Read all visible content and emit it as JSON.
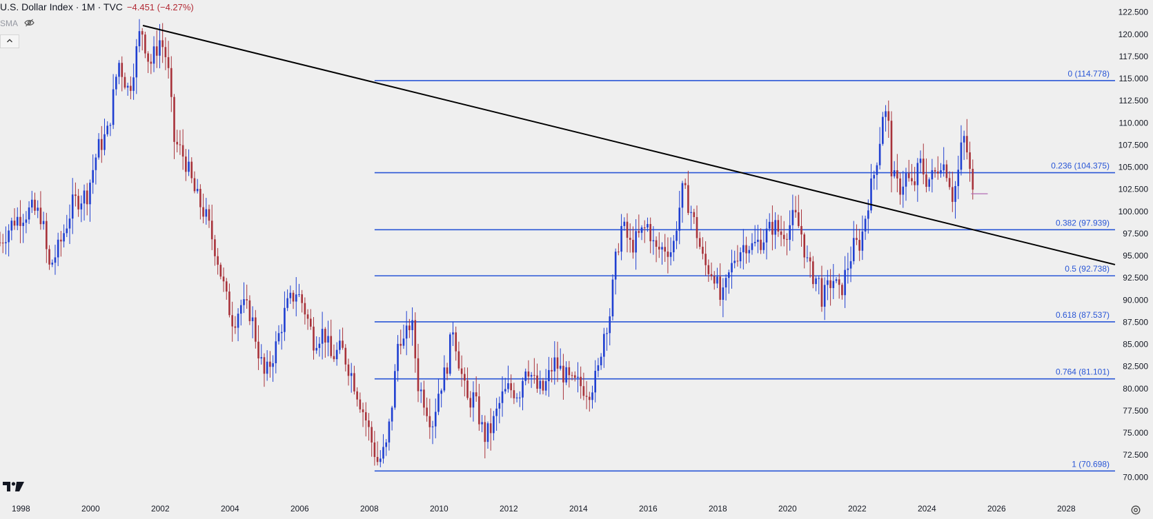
{
  "header": {
    "title": "U.S. Dollar Index · 1M · TVC",
    "change": "−4.451 (−4.27%)",
    "indicator": "SMA"
  },
  "colors": {
    "background": "#efefef",
    "up": "#1f3fd1",
    "down": "#a8323a",
    "fib": "#2855d6",
    "trendline": "#000000",
    "fib_label": "#2855d6",
    "change_text": "#b22833"
  },
  "icons": [
    "eye-off-icon",
    "chevron-up-icon",
    "tradingview-logo-icon",
    "settings-gear-icon"
  ],
  "chart_data": {
    "type": "candlestick",
    "title": "U.S. Dollar Index · 1M · TVC",
    "x_ticks": [
      "1998",
      "2000",
      "2002",
      "2004",
      "2006",
      "2008",
      "2010",
      "2012",
      "2014",
      "2016",
      "2018",
      "2020",
      "2022",
      "2024",
      "2026",
      "2028"
    ],
    "x_range": [
      1997.4,
      2029.4
    ],
    "y_ticks": [
      "70.000",
      "72.500",
      "75.000",
      "77.500",
      "80.000",
      "82.500",
      "85.000",
      "87.500",
      "90.000",
      "92.500",
      "95.000",
      "97.500",
      "100.000",
      "102.500",
      "105.000",
      "107.500",
      "110.000",
      "112.500",
      "115.000",
      "117.500",
      "120.000",
      "122.500"
    ],
    "y_range": [
      69.4,
      123.1
    ],
    "grid": false,
    "fibonacci_retracement": {
      "x_start": 2008.15,
      "levels": [
        {
          "ratio": "0",
          "value": 114.778,
          "label": "0 (114.778)"
        },
        {
          "ratio": "0.236",
          "value": 104.375,
          "label": "0.236 (104.375)"
        },
        {
          "ratio": "0.382",
          "value": 97.939,
          "label": "0.382 (97.939)"
        },
        {
          "ratio": "0.5",
          "value": 92.738,
          "label": "0.5 (92.738)"
        },
        {
          "ratio": "0.618",
          "value": 87.537,
          "label": "0.618 (87.537)"
        },
        {
          "ratio": "0.764",
          "value": 81.101,
          "label": "0.764 (81.101)"
        },
        {
          "ratio": "1",
          "value": 70.698,
          "label": "1 (70.698)"
        }
      ]
    },
    "trendline": {
      "from": [
        2001.5,
        121.0
      ],
      "through": [
        2025.3,
        98.0
      ],
      "to": [
        2029.4,
        94.0
      ]
    },
    "current_price_marker": {
      "x": 2025.35,
      "value": 102.0
    },
    "price_path": [
      [
        1997.4,
        96.5
      ],
      [
        1997.8,
        99.0
      ],
      [
        1998.3,
        100.2
      ],
      [
        1998.6,
        99.5
      ],
      [
        1998.8,
        93.5
      ],
      [
        1999.1,
        96.0
      ],
      [
        1999.5,
        101.0
      ],
      [
        1999.9,
        102.0
      ],
      [
        2000.2,
        107.0
      ],
      [
        2000.5,
        109.0
      ],
      [
        2000.8,
        117.0
      ],
      [
        2001.1,
        113.5
      ],
      [
        2001.45,
        120.9
      ],
      [
        2001.7,
        116.5
      ],
      [
        2002.0,
        119.5
      ],
      [
        2002.2,
        117.0
      ],
      [
        2002.4,
        108.0
      ],
      [
        2002.7,
        106.0
      ],
      [
        2003.0,
        102.0
      ],
      [
        2003.3,
        99.5
      ],
      [
        2003.6,
        95.5
      ],
      [
        2003.9,
        90.0
      ],
      [
        2004.1,
        87.5
      ],
      [
        2004.3,
        89.5
      ],
      [
        2004.6,
        88.5
      ],
      [
        2004.8,
        84.5
      ],
      [
        2005.0,
        81.2
      ],
      [
        2005.3,
        84.5
      ],
      [
        2005.6,
        89.0
      ],
      [
        2005.9,
        91.0
      ],
      [
        2006.1,
        89.5
      ],
      [
        2006.4,
        85.5
      ],
      [
        2006.7,
        86.5
      ],
      [
        2006.9,
        83.5
      ],
      [
        2007.2,
        84.5
      ],
      [
        2007.5,
        81.5
      ],
      [
        2007.7,
        79.0
      ],
      [
        2007.9,
        76.5
      ],
      [
        2008.1,
        73.5
      ],
      [
        2008.25,
        71.6
      ],
      [
        2008.5,
        73.5
      ],
      [
        2008.7,
        80.0
      ],
      [
        2008.85,
        86.5
      ],
      [
        2009.0,
        85.0
      ],
      [
        2009.2,
        88.0
      ],
      [
        2009.4,
        80.5
      ],
      [
        2009.6,
        78.5
      ],
      [
        2009.8,
        76.0
      ],
      [
        2010.0,
        80.0
      ],
      [
        2010.2,
        82.0
      ],
      [
        2010.4,
        87.0
      ],
      [
        2010.6,
        82.5
      ],
      [
        2010.8,
        78.5
      ],
      [
        2011.0,
        79.0
      ],
      [
        2011.3,
        74.5
      ],
      [
        2011.5,
        75.5
      ],
      [
        2011.8,
        79.0
      ],
      [
        2012.0,
        80.0
      ],
      [
        2012.3,
        79.5
      ],
      [
        2012.5,
        83.0
      ],
      [
        2012.8,
        80.0
      ],
      [
        2013.0,
        79.8
      ],
      [
        2013.3,
        83.0
      ],
      [
        2013.5,
        82.0
      ],
      [
        2013.8,
        80.5
      ],
      [
        2014.0,
        80.5
      ],
      [
        2014.3,
        79.8
      ],
      [
        2014.55,
        81.5
      ],
      [
        2014.7,
        86.0
      ],
      [
        2014.9,
        88.5
      ],
      [
        2015.1,
        95.5
      ],
      [
        2015.25,
        98.5
      ],
      [
        2015.5,
        96.0
      ],
      [
        2015.8,
        97.5
      ],
      [
        2016.0,
        98.5
      ],
      [
        2016.2,
        95.5
      ],
      [
        2016.5,
        96.0
      ],
      [
        2016.7,
        95.5
      ],
      [
        2016.85,
        99.5
      ],
      [
        2017.0,
        102.5
      ],
      [
        2017.2,
        100.5
      ],
      [
        2017.4,
        97.5
      ],
      [
        2017.6,
        94.0
      ],
      [
        2017.9,
        93.0
      ],
      [
        2018.1,
        89.5
      ],
      [
        2018.3,
        92.5
      ],
      [
        2018.5,
        95.0
      ],
      [
        2018.8,
        96.5
      ],
      [
        2019.0,
        96.0
      ],
      [
        2019.3,
        97.0
      ],
      [
        2019.6,
        98.5
      ],
      [
        2019.8,
        97.5
      ],
      [
        2020.0,
        98.0
      ],
      [
        2020.2,
        99.5
      ],
      [
        2020.4,
        97.5
      ],
      [
        2020.6,
        93.5
      ],
      [
        2020.9,
        92.0
      ],
      [
        2021.0,
        90.0
      ],
      [
        2021.3,
        92.5
      ],
      [
        2021.5,
        90.5
      ],
      [
        2021.7,
        93.5
      ],
      [
        2021.9,
        96.0
      ],
      [
        2022.1,
        96.5
      ],
      [
        2022.3,
        101.0
      ],
      [
        2022.5,
        104.5
      ],
      [
        2022.7,
        109.5
      ],
      [
        2022.75,
        112.0
      ],
      [
        2022.9,
        109.5
      ],
      [
        2023.0,
        104.0
      ],
      [
        2023.2,
        102.5
      ],
      [
        2023.4,
        104.0
      ],
      [
        2023.6,
        102.5
      ],
      [
        2023.8,
        105.5
      ],
      [
        2024.0,
        103.5
      ],
      [
        2024.2,
        104.0
      ],
      [
        2024.4,
        105.8
      ],
      [
        2024.6,
        104.5
      ],
      [
        2024.75,
        101.5
      ],
      [
        2024.9,
        104.5
      ],
      [
        2025.0,
        107.5
      ],
      [
        2025.1,
        108.5
      ],
      [
        2025.2,
        105.0
      ],
      [
        2025.3,
        103.0
      ],
      [
        2025.35,
        99.5
      ]
    ]
  }
}
